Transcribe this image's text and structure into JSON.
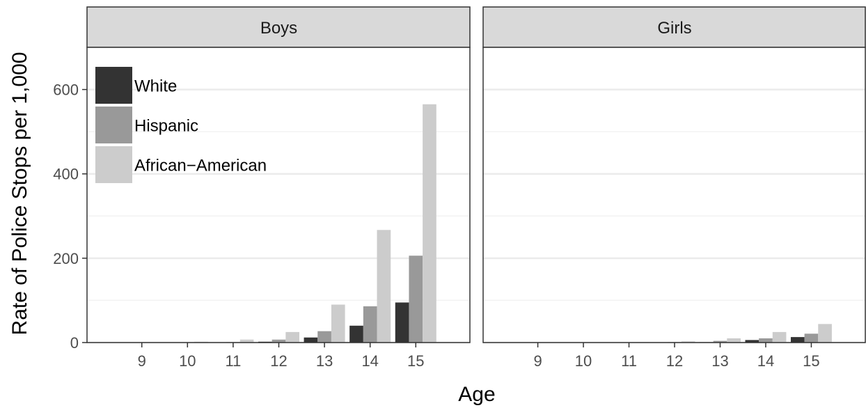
{
  "chart_data": {
    "type": "bar",
    "xlabel": "Age",
    "ylabel": "Rate of Police Stops per 1,000",
    "categories": [
      "9",
      "10",
      "11",
      "12",
      "13",
      "14",
      "15"
    ],
    "ylim": [
      0,
      700
    ],
    "yticks": [
      0,
      200,
      400,
      600
    ],
    "grid": true,
    "legend_position": "top-left",
    "series_colors": [
      "#333333",
      "#999999",
      "#cccccc"
    ],
    "legend": [
      "White",
      "Hispanic",
      "African−American"
    ],
    "panels": [
      {
        "label": "Boys",
        "series": [
          {
            "name": "White",
            "values": [
              0,
              0,
              0,
              2,
              12,
              40,
              95
            ]
          },
          {
            "name": "Hispanic",
            "values": [
              0,
              0,
              1,
              7,
              27,
              86,
              206
            ]
          },
          {
            "name": "African−American",
            "values": [
              0,
              2,
              7,
              25,
              90,
              267,
              565
            ]
          }
        ]
      },
      {
        "label": "Girls",
        "series": [
          {
            "name": "White",
            "values": [
              0,
              0,
              0,
              0,
              1,
              6,
              13
            ]
          },
          {
            "name": "Hispanic",
            "values": [
              0,
              0,
              0,
              1,
              4,
              10,
              21
            ]
          },
          {
            "name": "African−American",
            "values": [
              0,
              0,
              1,
              3,
              10,
              25,
              44
            ]
          }
        ]
      }
    ]
  }
}
